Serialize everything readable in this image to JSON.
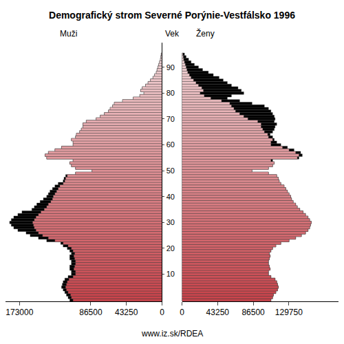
{
  "chart_data": {
    "type": "bar",
    "orientation": "horizontal",
    "title": "Demografický strom Severné Porýnie-Vestfálsko 1996",
    "y_label": "Vek",
    "annotations": [
      "www.iz.sk/RDEA"
    ],
    "categories": [
      0,
      1,
      2,
      3,
      4,
      5,
      6,
      7,
      8,
      9,
      10,
      11,
      12,
      13,
      14,
      15,
      16,
      17,
      18,
      19,
      20,
      21,
      22,
      23,
      24,
      25,
      26,
      27,
      28,
      29,
      30,
      31,
      32,
      33,
      34,
      35,
      36,
      37,
      38,
      39,
      40,
      41,
      42,
      43,
      44,
      45,
      46,
      47,
      48,
      49,
      50,
      51,
      52,
      53,
      54,
      55,
      56,
      57,
      58,
      59,
      60,
      61,
      62,
      63,
      64,
      65,
      66,
      67,
      68,
      69,
      70,
      71,
      72,
      73,
      74,
      75,
      76,
      77,
      78,
      79,
      80,
      81,
      82,
      83,
      84,
      85,
      86,
      87,
      88,
      89,
      90,
      91,
      92,
      93,
      94,
      95
    ],
    "ylim": [
      -0.5,
      99.5
    ],
    "yticks": [
      10,
      20,
      30,
      40,
      50,
      60,
      70,
      80,
      90
    ],
    "xlim": [
      0,
      190000
    ],
    "grid": false,
    "series": [
      {
        "name": "Muži",
        "color": "#c9424a",
        "xticks": [
          0,
          43250,
          86500,
          173000
        ],
        "values": [
          112000,
          114000,
          116000,
          118000,
          120000,
          122000,
          121000,
          120000,
          118000,
          114000,
          110000,
          110000,
          112000,
          112000,
          110000,
          110000,
          112000,
          112000,
          110000,
          112000,
          115000,
          120000,
          123000,
          140000,
          150000,
          160000,
          165000,
          175000,
          180000,
          183000,
          185000,
          183000,
          180000,
          175000,
          170000,
          158000,
          155000,
          152000,
          148000,
          144000,
          140000,
          138000,
          136000,
          133000,
          130000,
          126000,
          120000,
          119000,
          117000,
          105000,
          85000,
          105000,
          110000,
          112000,
          108000,
          140000,
          142000,
          138000,
          130000,
          122000,
          108000,
          108000,
          110000,
          105000,
          104000,
          100000,
          98000,
          96000,
          96000,
          92000,
          80000,
          75000,
          70000,
          65000,
          63000,
          60000,
          58000,
          48000,
          35000,
          27000,
          22000,
          26000,
          24000,
          20000,
          17000,
          14000,
          11000,
          9000,
          7000,
          6000,
          5000,
          4000,
          3000,
          2000,
          1500,
          1000
        ]
      },
      {
        "name": "Ženy",
        "color": "#c9424a",
        "xticks": [
          0,
          43250,
          86500,
          129750
        ],
        "values": [
          108000,
          110000,
          111000,
          114000,
          116000,
          117000,
          116000,
          115000,
          113000,
          108000,
          105000,
          105000,
          107000,
          106000,
          105000,
          105000,
          106000,
          107000,
          106000,
          108000,
          110000,
          114000,
          120000,
          130000,
          138000,
          145000,
          150000,
          153000,
          155000,
          156000,
          157000,
          155000,
          153000,
          150000,
          147000,
          143000,
          140000,
          138000,
          135000,
          133000,
          132000,
          130000,
          128000,
          126000,
          124000,
          120000,
          118000,
          117000,
          115000,
          105000,
          85000,
          105000,
          110000,
          112000,
          110000,
          142000,
          146000,
          144000,
          136000,
          128000,
          120000,
          115000,
          112000,
          110000,
          107000,
          110000,
          112000,
          113000,
          115000,
          112000,
          113000,
          112000,
          110000,
          108000,
          105000,
          100000,
          85000,
          70000,
          55000,
          60000,
          75000,
          72000,
          68000,
          60000,
          55000,
          50000,
          45000,
          38000,
          32000,
          25000,
          20000,
          15000,
          11000,
          8000,
          5000,
          3000
        ]
      }
    ]
  }
}
